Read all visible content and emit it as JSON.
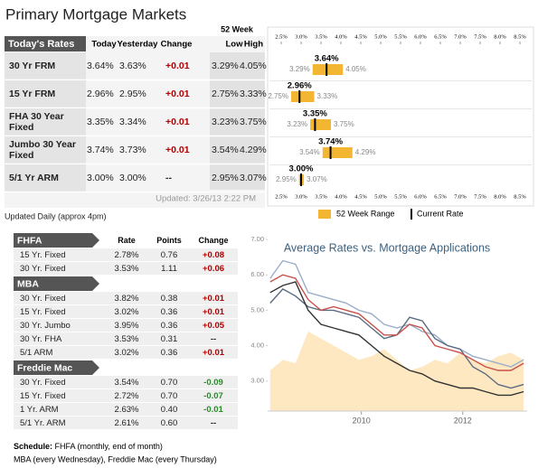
{
  "title": "Primary Mortgage Markets",
  "rates_table": {
    "label": "Today's Rates",
    "group_header": "52 Week",
    "columns": [
      "Today",
      "Yesterday",
      "Change",
      "Low",
      "High"
    ],
    "rows": [
      {
        "name_lines": [
          "30 Yr FRM"
        ],
        "cells": [
          "3.64%",
          "3.63%",
          "+0.01",
          "3.29%",
          "4.05%"
        ]
      },
      {
        "name_lines": [
          "15 Yr FRM"
        ],
        "cells": [
          "2.96%",
          "2.95%",
          "+0.01",
          "2.75%",
          "3.33%"
        ]
      },
      {
        "name_lines": [
          "FHA 30 Year",
          "Fixed"
        ],
        "cells": [
          "3.35%",
          "3.34%",
          "+0.01",
          "3.23%",
          "3.75%"
        ]
      },
      {
        "name_lines": [
          "Jumbo 30 Year",
          "Fixed"
        ],
        "cells": [
          "3.74%",
          "3.73%",
          "+0.01",
          "3.54%",
          "4.29%"
        ]
      },
      {
        "name_lines": [
          "5/1 Yr ARM"
        ],
        "cells": [
          "3.00%",
          "3.00%",
          "--",
          "2.95%",
          "3.07%"
        ]
      }
    ],
    "updated": "Updated: 3/26/13 2:22 PM",
    "note": "Updated Daily (approx 4pm)"
  },
  "range_chart": {
    "bar_color": "#f2b632",
    "ticks": [
      {
        "value": 2.5,
        "label": "2.5%"
      },
      {
        "value": 3,
        "label": "3.0%"
      },
      {
        "value": 3.5,
        "label": "3.5%"
      },
      {
        "value": 4,
        "label": "4.0%"
      },
      {
        "value": 4.5,
        "label": "4.5%"
      },
      {
        "value": 5,
        "label": "5.0%"
      },
      {
        "value": 5.5,
        "label": "5.5%"
      },
      {
        "value": 6,
        "label": "6.0%"
      },
      {
        "value": 6.5,
        "label": "6.5%"
      },
      {
        "value": 7,
        "label": "7.0%"
      },
      {
        "value": 7.5,
        "label": "7.5%"
      },
      {
        "value": 8,
        "label": "8.0%"
      },
      {
        "value": 8.5,
        "label": "8.5%"
      }
    ],
    "rows": [
      {
        "current": 3.64,
        "current_label": "3.64%",
        "low": 3.29,
        "low_label": "3.29%",
        "high": 4.05,
        "high_label": "4.05%"
      },
      {
        "current": 2.96,
        "current_label": "2.96%",
        "low": 2.75,
        "low_label": "2.75%",
        "high": 3.33,
        "high_label": "3.33%"
      },
      {
        "current": 3.35,
        "current_label": "3.35%",
        "low": 3.23,
        "low_label": "3.23%",
        "high": 3.75,
        "high_label": "3.75%"
      },
      {
        "current": 3.74,
        "current_label": "3.74%",
        "low": 3.54,
        "low_label": "3.54%",
        "high": 4.29,
        "high_label": "4.29%"
      },
      {
        "current": 3.0,
        "current_label": "3.00%",
        "low": 2.95,
        "low_label": "2.95%",
        "high": 3.07,
        "high_label": "3.07%"
      }
    ],
    "legend": [
      "52 Week Range",
      "Current Rate"
    ]
  },
  "market_table": {
    "columns": [
      "Rate",
      "Points",
      "Change"
    ],
    "sections": [
      {
        "name": "FHFA",
        "rows": [
          [
            "15 Yr. Fixed",
            "2.78%",
            "0.76",
            "+0.08"
          ],
          [
            "30 Yr. Fixed",
            "3.53%",
            "1.11",
            "+0.06"
          ]
        ]
      },
      {
        "name": "MBA",
        "rows": [
          [
            "30 Yr. Fixed",
            "3.82%",
            "0.38",
            "+0.01"
          ],
          [
            "15 Yr. Fixed",
            "3.02%",
            "0.36",
            "+0.01"
          ],
          [
            "30 Yr. Jumbo",
            "3.95%",
            "0.36",
            "+0.05"
          ],
          [
            "30 Yr. FHA",
            "3.53%",
            "0.31",
            "--"
          ],
          [
            "5/1 ARM",
            "3.02%",
            "0.36",
            "+0.01"
          ]
        ]
      },
      {
        "name": "Freddie Mac",
        "rows": [
          [
            "30 Yr. Fixed",
            "3.54%",
            "0.70",
            "-0.09"
          ],
          [
            "15 Yr. Fixed",
            "2.72%",
            "0.70",
            "-0.07"
          ],
          [
            "1 Yr. ARM",
            "2.63%",
            "0.40",
            "-0.01"
          ],
          [
            "5/1 Yr. ARM",
            "2.61%",
            "0.60",
            "--"
          ]
        ]
      }
    ],
    "schedule_label": "Schedule:",
    "schedule_lines": [
      " FHFA (monthly, end of month)",
      "MBA (every Wednesday), Freddie Mac (every Thursday)"
    ]
  },
  "chart_data": {
    "type": "line",
    "title": "Average Rates vs. Mortgage Applications",
    "x": [
      2008.2,
      2008.45,
      2008.7,
      2008.95,
      2009.2,
      2009.45,
      2009.7,
      2009.95,
      2010.2,
      2010.45,
      2010.7,
      2010.95,
      2011.2,
      2011.45,
      2011.7,
      2011.95,
      2012.2,
      2012.45,
      2012.7,
      2012.95,
      2013.2
    ],
    "xlim": [
      2008.15,
      2013.27
    ],
    "xticks": [
      2010,
      2012
    ],
    "ylim": [
      2.15,
      7.18
    ],
    "yticks": [
      {
        "value": 3,
        "label": "3.00"
      },
      {
        "value": 4,
        "label": "4.00"
      },
      {
        "value": 5,
        "label": "5.00"
      },
      {
        "value": 6,
        "label": "6.00"
      },
      {
        "value": 7,
        "label": "7.00"
      }
    ],
    "series": [
      {
        "type": "area",
        "color": "#fde8c2",
        "values": [
          3.3,
          3.6,
          3.5,
          4.4,
          4.2,
          4.0,
          3.8,
          3.6,
          3.7,
          3.9,
          3.6,
          3.3,
          3.4,
          3.6,
          3.5,
          3.8,
          3.6,
          3.5,
          3.7,
          3.8,
          3.6
        ]
      },
      {
        "type": "line",
        "color": "#9aaec8",
        "values": [
          5.9,
          6.4,
          6.3,
          5.5,
          5.4,
          5.3,
          5.2,
          5.0,
          4.9,
          4.6,
          4.5,
          4.6,
          4.4,
          4.3,
          4.0,
          3.9,
          3.7,
          3.6,
          3.5,
          3.4,
          3.6
        ]
      },
      {
        "type": "line",
        "color": "#5a6b80",
        "values": [
          5.2,
          5.6,
          5.4,
          5.1,
          5.0,
          5.0,
          4.9,
          4.8,
          4.5,
          4.2,
          4.3,
          4.8,
          4.7,
          4.2,
          4.0,
          3.9,
          3.4,
          3.2,
          2.9,
          2.8,
          2.9
        ]
      },
      {
        "type": "line",
        "color": "#c9504a",
        "values": [
          5.8,
          6.0,
          5.9,
          5.3,
          5.0,
          5.1,
          5.0,
          4.9,
          4.6,
          4.3,
          4.3,
          4.6,
          4.5,
          4.0,
          3.9,
          3.8,
          3.6,
          3.4,
          3.3,
          3.3,
          3.5
        ]
      },
      {
        "type": "line",
        "color": "#333333",
        "values": [
          5.5,
          5.7,
          5.8,
          5.0,
          4.6,
          4.5,
          4.4,
          4.3,
          4.0,
          3.7,
          3.5,
          3.3,
          3.2,
          3.0,
          2.9,
          2.8,
          2.8,
          2.7,
          2.6,
          2.6,
          2.7
        ]
      }
    ]
  }
}
